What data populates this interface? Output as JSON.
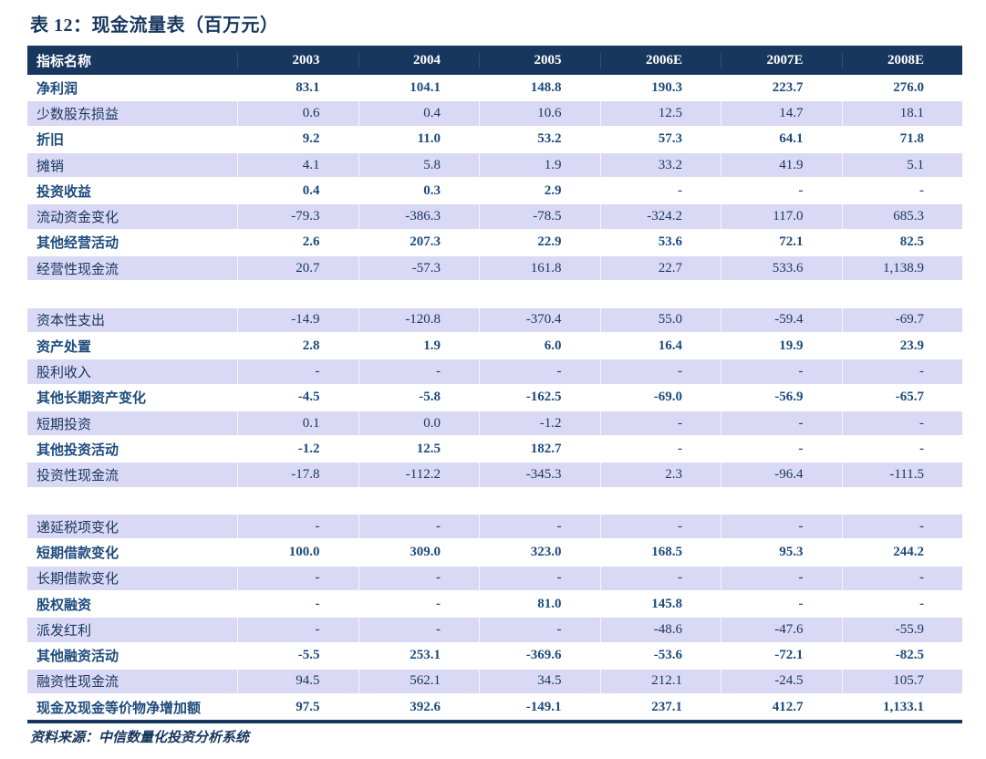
{
  "title": "表 12：现金流量表（百万元）",
  "source_note": "资料来源：中信数量化投资分析系统",
  "colors": {
    "header_bg": "#17375E",
    "stripe_row_bg": "#D9D9F6",
    "plain_row_text": "#1D4B7C",
    "stripe_row_text": "#17365D",
    "title_text": "#17375E"
  },
  "chart_data": {
    "type": "table",
    "title": "表 12：现金流量表（百万元）",
    "columns": [
      "指标名称",
      "2003",
      "2004",
      "2005",
      "2006E",
      "2007E",
      "2008E"
    ],
    "sections": [
      {
        "rows": [
          {
            "label": "净利润",
            "stripe": false,
            "values": [
              "83.1",
              "104.1",
              "148.8",
              "190.3",
              "223.7",
              "276.0"
            ]
          },
          {
            "label": "少数股东损益",
            "stripe": true,
            "values": [
              "0.6",
              "0.4",
              "10.6",
              "12.5",
              "14.7",
              "18.1"
            ]
          },
          {
            "label": "折旧",
            "stripe": false,
            "values": [
              "9.2",
              "11.0",
              "53.2",
              "57.3",
              "64.1",
              "71.8"
            ]
          },
          {
            "label": "摊销",
            "stripe": true,
            "values": [
              "4.1",
              "5.8",
              "1.9",
              "33.2",
              "41.9",
              "5.1"
            ]
          },
          {
            "label": "投资收益",
            "stripe": false,
            "values": [
              "0.4",
              "0.3",
              "2.9",
              "-",
              "-",
              "-"
            ]
          },
          {
            "label": "流动资金变化",
            "stripe": true,
            "values": [
              "-79.3",
              "-386.3",
              "-78.5",
              "-324.2",
              "117.0",
              "685.3"
            ]
          },
          {
            "label": "其他经营活动",
            "stripe": false,
            "values": [
              "2.6",
              "207.3",
              "22.9",
              "53.6",
              "72.1",
              "82.5"
            ]
          },
          {
            "label": "经营性现金流",
            "stripe": true,
            "values": [
              "20.7",
              "-57.3",
              "161.8",
              "22.7",
              "533.6",
              "1,138.9"
            ]
          }
        ]
      },
      {
        "rows": [
          {
            "label": "资本性支出",
            "stripe": true,
            "values": [
              "-14.9",
              "-120.8",
              "-370.4",
              "55.0",
              "-59.4",
              "-69.7"
            ]
          },
          {
            "label": "资产处置",
            "stripe": false,
            "values": [
              "2.8",
              "1.9",
              "6.0",
              "16.4",
              "19.9",
              "23.9"
            ]
          },
          {
            "label": "股利收入",
            "stripe": true,
            "values": [
              "-",
              "-",
              "-",
              "-",
              "-",
              "-"
            ]
          },
          {
            "label": "其他长期资产变化",
            "stripe": false,
            "values": [
              "-4.5",
              "-5.8",
              "-162.5",
              "-69.0",
              "-56.9",
              "-65.7"
            ]
          },
          {
            "label": "短期投资",
            "stripe": true,
            "values": [
              "0.1",
              "0.0",
              "-1.2",
              "-",
              "-",
              "-"
            ]
          },
          {
            "label": "其他投资活动",
            "stripe": false,
            "values": [
              "-1.2",
              "12.5",
              "182.7",
              "-",
              "-",
              "-"
            ]
          },
          {
            "label": "投资性现金流",
            "stripe": true,
            "values": [
              "-17.8",
              "-112.2",
              "-345.3",
              "2.3",
              "-96.4",
              "-111.5"
            ]
          }
        ]
      },
      {
        "rows": [
          {
            "label": "递延税项变化",
            "stripe": true,
            "values": [
              "-",
              "-",
              "-",
              "-",
              "-",
              "-"
            ]
          },
          {
            "label": "短期借款变化",
            "stripe": false,
            "values": [
              "100.0",
              "309.0",
              "323.0",
              "168.5",
              "95.3",
              "244.2"
            ]
          },
          {
            "label": "长期借款变化",
            "stripe": true,
            "values": [
              "-",
              "-",
              "-",
              "-",
              "-",
              "-"
            ]
          },
          {
            "label": "股权融资",
            "stripe": false,
            "values": [
              "-",
              "-",
              "81.0",
              "145.8",
              "-",
              "-"
            ]
          },
          {
            "label": "派发红利",
            "stripe": true,
            "values": [
              "-",
              "-",
              "-",
              "-48.6",
              "-47.6",
              "-55.9"
            ]
          },
          {
            "label": "其他融资活动",
            "stripe": false,
            "values": [
              "-5.5",
              "253.1",
              "-369.6",
              "-53.6",
              "-72.1",
              "-82.5"
            ]
          },
          {
            "label": "融资性现金流",
            "stripe": true,
            "values": [
              "94.5",
              "562.1",
              "34.5",
              "212.1",
              "-24.5",
              "105.7"
            ]
          },
          {
            "label": "现金及现金等价物净增加额",
            "stripe": false,
            "values": [
              "97.5",
              "392.6",
              "-149.1",
              "237.1",
              "412.7",
              "1,133.1"
            ]
          }
        ]
      }
    ]
  }
}
